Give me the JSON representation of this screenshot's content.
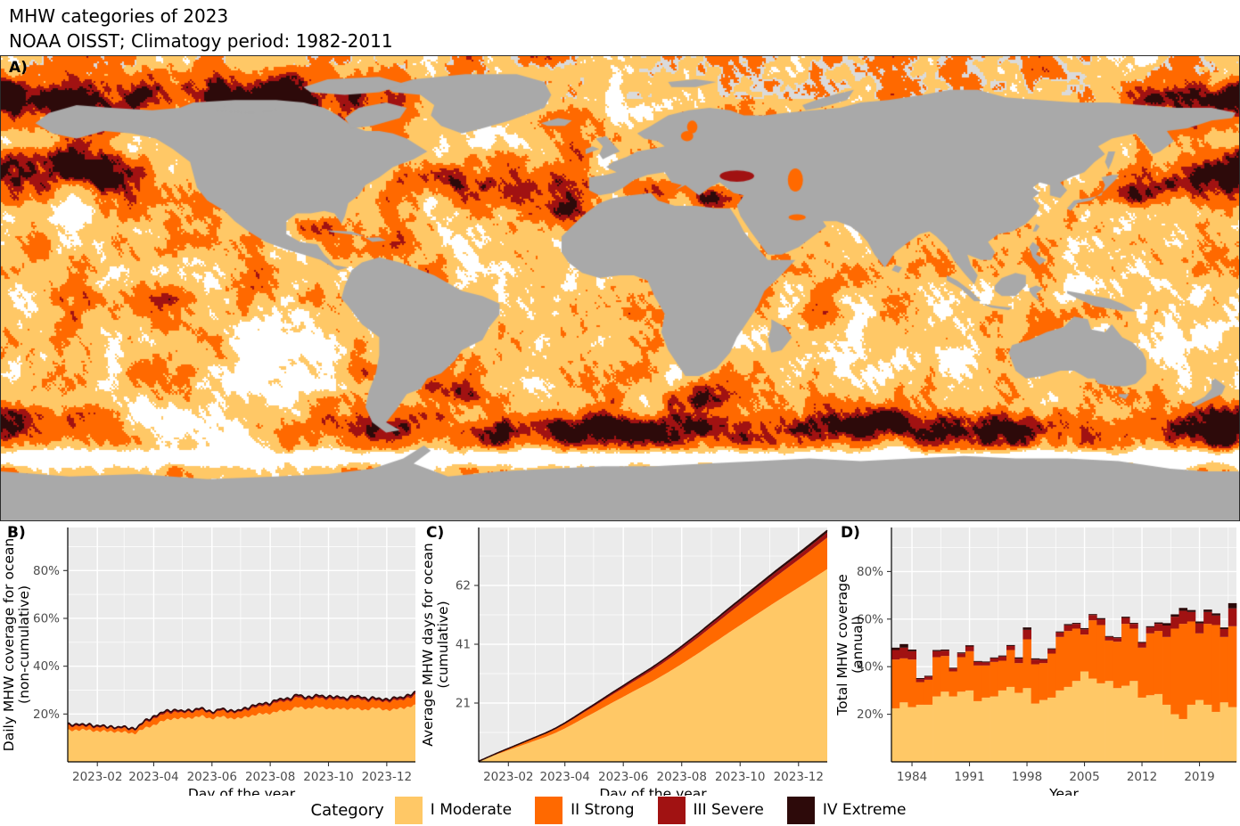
{
  "title": "MHW categories of 2023",
  "subtitle": "NOAA OISST; Climatogy period: 1982-2011",
  "colors": {
    "moderate": "#FFC866",
    "strong": "#FF6900",
    "severe": "#A11212",
    "extreme": "#2D0A0A",
    "land": "#A9A9A9",
    "panel_bg": "#EBEBEB",
    "grid": "#FFFFFF",
    "no_mhw_ocean": "#FFFFFF",
    "sea_ice": "#DADADA",
    "tick_text": "#4D4D4D",
    "map_border": "#2B2B2B"
  },
  "panels": {
    "map": {
      "tag": "A)"
    },
    "b": {
      "tag": "B)"
    },
    "c": {
      "tag": "C)"
    },
    "d": {
      "tag": "D)"
    }
  },
  "legend": {
    "title": "Category",
    "items": [
      {
        "label": "I Moderate",
        "color": "moderate"
      },
      {
        "label": "II Strong",
        "color": "strong"
      },
      {
        "label": "III Severe",
        "color": "severe"
      },
      {
        "label": "IV Extreme",
        "color": "extreme"
      }
    ]
  },
  "chart_data": [
    {
      "id": "daily_coverage",
      "type": "area",
      "stacked": true,
      "xlabel": "Day of the year",
      "ylabel_lines": [
        "Daily MHW coverage for ocean",
        "(non-cumulative)"
      ],
      "ylim": [
        0,
        98
      ],
      "y_tick_values": [
        20,
        40,
        60,
        80
      ],
      "y_tick_labels": [
        "20%",
        "40%",
        "60%",
        "80%"
      ],
      "y_minor_values": [
        10,
        30,
        50,
        70,
        90
      ],
      "x_tick_days": [
        32,
        91,
        152,
        213,
        274,
        335
      ],
      "x_tick_labels": [
        "2023-02",
        "2023-04",
        "2023-06",
        "2023-08",
        "2023-10",
        "2023-12"
      ],
      "x_minor_days": [
        60,
        121,
        182,
        244,
        305
      ],
      "x_days": [
        1,
        11,
        21,
        31,
        41,
        51,
        61,
        71,
        81,
        91,
        101,
        111,
        121,
        131,
        141,
        151,
        161,
        171,
        181,
        191,
        201,
        211,
        221,
        231,
        241,
        251,
        261,
        271,
        281,
        291,
        301,
        311,
        321,
        331,
        341,
        351,
        361,
        365
      ],
      "series": [
        {
          "name": "I Moderate",
          "color": "moderate",
          "values": [
            13.0,
            13.5,
            13.2,
            13.0,
            12.6,
            12.8,
            12.2,
            12.0,
            13.8,
            15.5,
            17.0,
            18.3,
            18.0,
            18.6,
            19.0,
            18.2,
            18.8,
            18.4,
            18.0,
            19.3,
            19.8,
            20.3,
            21.0,
            21.6,
            22.8,
            22.4,
            22.9,
            22.6,
            22.0,
            22.4,
            22.2,
            21.8,
            22.4,
            22.0,
            21.6,
            22.6,
            23.2,
            23.4
          ]
        },
        {
          "name": "II Strong",
          "color": "strong",
          "values": [
            1.6,
            1.7,
            1.6,
            1.5,
            1.5,
            1.4,
            1.4,
            1.5,
            2.2,
            2.6,
            3.0,
            2.6,
            2.4,
            2.6,
            2.4,
            2.2,
            2.5,
            2.3,
            2.8,
            2.9,
            3.2,
            3.6,
            3.8,
            3.9,
            4.2,
            3.6,
            3.8,
            3.9,
            4.0,
            3.6,
            4.2,
            4.0,
            3.4,
            3.2,
            3.8,
            3.6,
            3.8,
            4.2
          ]
        },
        {
          "name": "III Severe",
          "color": "severe",
          "values": [
            0.5,
            0.5,
            0.5,
            0.5,
            0.4,
            0.4,
            0.4,
            0.4,
            0.5,
            0.6,
            0.6,
            0.6,
            0.5,
            0.5,
            0.5,
            0.5,
            0.5,
            0.5,
            0.5,
            0.6,
            0.6,
            0.6,
            0.7,
            0.7,
            0.7,
            0.6,
            0.7,
            0.7,
            0.7,
            0.6,
            0.7,
            0.7,
            0.6,
            0.6,
            0.7,
            0.7,
            0.8,
            0.8
          ]
        },
        {
          "name": "IV Extreme",
          "color": "extreme",
          "values": [
            0.2,
            0.2,
            0.2,
            0.2,
            0.2,
            0.2,
            0.2,
            0.2,
            0.2,
            0.3,
            0.3,
            0.3,
            0.2,
            0.2,
            0.2,
            0.2,
            0.2,
            0.2,
            0.2,
            0.3,
            0.3,
            0.3,
            0.3,
            0.3,
            0.3,
            0.3,
            0.3,
            0.3,
            0.3,
            0.3,
            0.3,
            0.3,
            0.3,
            0.3,
            0.3,
            0.3,
            0.4,
            0.4
          ]
        }
      ]
    },
    {
      "id": "cumulative_days",
      "type": "area",
      "stacked": true,
      "xlabel": "Day of the year",
      "ylabel_lines": [
        "Average MHW days for ocean",
        "(cumulative)"
      ],
      "ylim": [
        0,
        82.5
      ],
      "y_tick_values": [
        20.7,
        41.4,
        62.1
      ],
      "y_tick_labels": [
        "21",
        "41",
        "62"
      ],
      "y_minor_values": [
        10.35,
        31.05,
        51.75,
        72.45
      ],
      "x_tick_days": [
        32,
        91,
        152,
        213,
        274,
        335
      ],
      "x_tick_labels": [
        "2023-02",
        "2023-04",
        "2023-06",
        "2023-08",
        "2023-10",
        "2023-12"
      ],
      "x_minor_days": [
        60,
        121,
        182,
        244,
        305
      ],
      "x_days": [
        1,
        11,
        21,
        31,
        41,
        51,
        61,
        71,
        81,
        91,
        101,
        111,
        121,
        131,
        141,
        151,
        161,
        171,
        181,
        191,
        201,
        211,
        221,
        231,
        241,
        251,
        261,
        271,
        281,
        291,
        301,
        311,
        321,
        331,
        341,
        351,
        361,
        365
      ],
      "series": [
        {
          "name": "I Moderate",
          "color": "moderate",
          "values": [
            0.17,
            1.48,
            2.78,
            3.99,
            5.2,
            6.4,
            7.6,
            8.79,
            10.16,
            11.78,
            13.57,
            15.44,
            17.22,
            19.08,
            20.94,
            22.71,
            24.55,
            26.31,
            28.06,
            29.98,
            31.98,
            34.05,
            36.21,
            38.37,
            40.68,
            42.91,
            45.22,
            47.44,
            49.66,
            51.87,
            54.07,
            56.27,
            58.38,
            60.5,
            62.61,
            64.8,
            66.99,
            67.86
          ]
        },
        {
          "name": "II Strong",
          "color": "strong",
          "values": [
            0.02,
            0.17,
            0.32,
            0.47,
            0.61,
            0.77,
            0.93,
            1.09,
            1.27,
            1.5,
            1.74,
            2.0,
            2.26,
            2.53,
            2.8,
            3.07,
            3.36,
            3.63,
            3.92,
            4.23,
            4.55,
            4.9,
            5.26,
            5.62,
            6.03,
            6.41,
            6.82,
            7.21,
            7.61,
            8.01,
            8.43,
            8.85,
            9.26,
            9.66,
            10.07,
            10.49,
            10.92,
            11.11
          ]
        },
        {
          "name": "III Severe",
          "color": "severe",
          "values": [
            0.0,
            0.04,
            0.07,
            0.1,
            0.13,
            0.16,
            0.19,
            0.22,
            0.26,
            0.3,
            0.35,
            0.4,
            0.44,
            0.49,
            0.54,
            0.59,
            0.63,
            0.68,
            0.73,
            0.78,
            0.83,
            0.88,
            0.94,
            1.0,
            1.06,
            1.12,
            1.18,
            1.24,
            1.3,
            1.36,
            1.42,
            1.48,
            1.54,
            1.59,
            1.65,
            1.71,
            1.77,
            1.79
          ]
        },
        {
          "name": "IV Extreme",
          "color": "extreme",
          "values": [
            0.0,
            0.02,
            0.03,
            0.04,
            0.05,
            0.07,
            0.08,
            0.09,
            0.11,
            0.12,
            0.14,
            0.16,
            0.18,
            0.2,
            0.22,
            0.24,
            0.26,
            0.28,
            0.3,
            0.32,
            0.34,
            0.36,
            0.39,
            0.41,
            0.43,
            0.46,
            0.48,
            0.51,
            0.53,
            0.56,
            0.58,
            0.61,
            0.63,
            0.65,
            0.68,
            0.7,
            0.72,
            0.73
          ]
        }
      ]
    },
    {
      "id": "annual_coverage",
      "type": "bar",
      "stacked": true,
      "xlabel": "Year",
      "ylabel_lines": [
        "Total MHW coverage",
        "(annual)"
      ],
      "ylim": [
        0,
        98.5
      ],
      "y_tick_values": [
        20,
        40,
        60,
        80
      ],
      "y_tick_labels": [
        "20%",
        "40%",
        "60%",
        "80%"
      ],
      "y_minor_values": [
        10,
        30,
        50,
        70,
        90
      ],
      "x_tick_years": [
        1984,
        1991,
        1998,
        2005,
        2012,
        2019
      ],
      "x_tick_labels": [
        "1984",
        "1991",
        "1998",
        "2005",
        "2012",
        "2019"
      ],
      "x_minor_years": [
        1987.5,
        1994.5,
        2001.5,
        2008.5,
        2015.5,
        2022.5
      ],
      "years": [
        1982,
        1983,
        1984,
        1985,
        1986,
        1987,
        1988,
        1989,
        1990,
        1991,
        1992,
        1993,
        1994,
        1995,
        1996,
        1997,
        1998,
        1999,
        2000,
        2001,
        2002,
        2003,
        2004,
        2005,
        2006,
        2007,
        2008,
        2009,
        2010,
        2011,
        2012,
        2013,
        2014,
        2015,
        2016,
        2017,
        2018,
        2019,
        2020,
        2021,
        2022,
        2023
      ],
      "series": [
        {
          "name": "I Moderate",
          "color": "moderate",
          "values": [
            22.5,
            25.0,
            23.0,
            24.0,
            24.0,
            27.5,
            29.5,
            27.5,
            29.5,
            30.0,
            25.5,
            27.0,
            27.5,
            30.0,
            31.5,
            29.0,
            31.0,
            24.5,
            26.0,
            27.0,
            30.0,
            31.5,
            34.0,
            38.0,
            35.0,
            33.0,
            34.0,
            31.0,
            32.0,
            34.0,
            27.0,
            28.0,
            28.5,
            24.0,
            20.0,
            18.0,
            24.0,
            26.0,
            24.0,
            21.0,
            25.0,
            23.0
          ]
        },
        {
          "name": "II Strong",
          "color": "strong",
          "values": [
            20.5,
            18.5,
            20.0,
            9.5,
            10.5,
            16.5,
            15.0,
            10.5,
            14.5,
            16.5,
            15.0,
            13.5,
            14.5,
            12.5,
            15.5,
            12.5,
            20.5,
            16.5,
            15.5,
            18.5,
            22.5,
            23.5,
            22.0,
            15.5,
            24.5,
            24.5,
            17.0,
            19.5,
            26.0,
            22.0,
            21.0,
            26.0,
            26.5,
            28.5,
            36.0,
            40.0,
            35.0,
            28.0,
            34.0,
            36.5,
            27.5,
            34.0
          ]
        },
        {
          "name": "III Severe",
          "color": "severe",
          "values": [
            4.0,
            4.5,
            3.5,
            1.3,
            1.3,
            2.5,
            2.2,
            1.2,
            1.6,
            2.0,
            1.5,
            1.3,
            1.5,
            1.8,
            1.7,
            1.9,
            4.0,
            2.0,
            1.4,
            1.8,
            1.9,
            2.4,
            2.0,
            2.2,
            2.2,
            2.4,
            1.5,
            1.5,
            2.5,
            2.0,
            2.0,
            2.5,
            3.0,
            4.8,
            5.0,
            5.5,
            4.0,
            4.2,
            5.0,
            4.0,
            3.3,
            7.5
          ]
        },
        {
          "name": "IV Extreme",
          "color": "extreme",
          "values": [
            1.0,
            1.5,
            0.7,
            0.4,
            0.3,
            0.5,
            0.5,
            0.3,
            0.4,
            0.5,
            0.3,
            0.3,
            0.3,
            0.4,
            0.4,
            0.5,
            1.0,
            0.5,
            0.3,
            0.4,
            0.4,
            0.5,
            0.4,
            0.5,
            0.4,
            0.5,
            0.3,
            0.3,
            0.5,
            0.4,
            0.4,
            0.5,
            0.6,
            1.0,
            1.0,
            1.2,
            0.8,
            0.8,
            1.0,
            0.9,
            0.7,
            2.2
          ]
        }
      ]
    }
  ]
}
